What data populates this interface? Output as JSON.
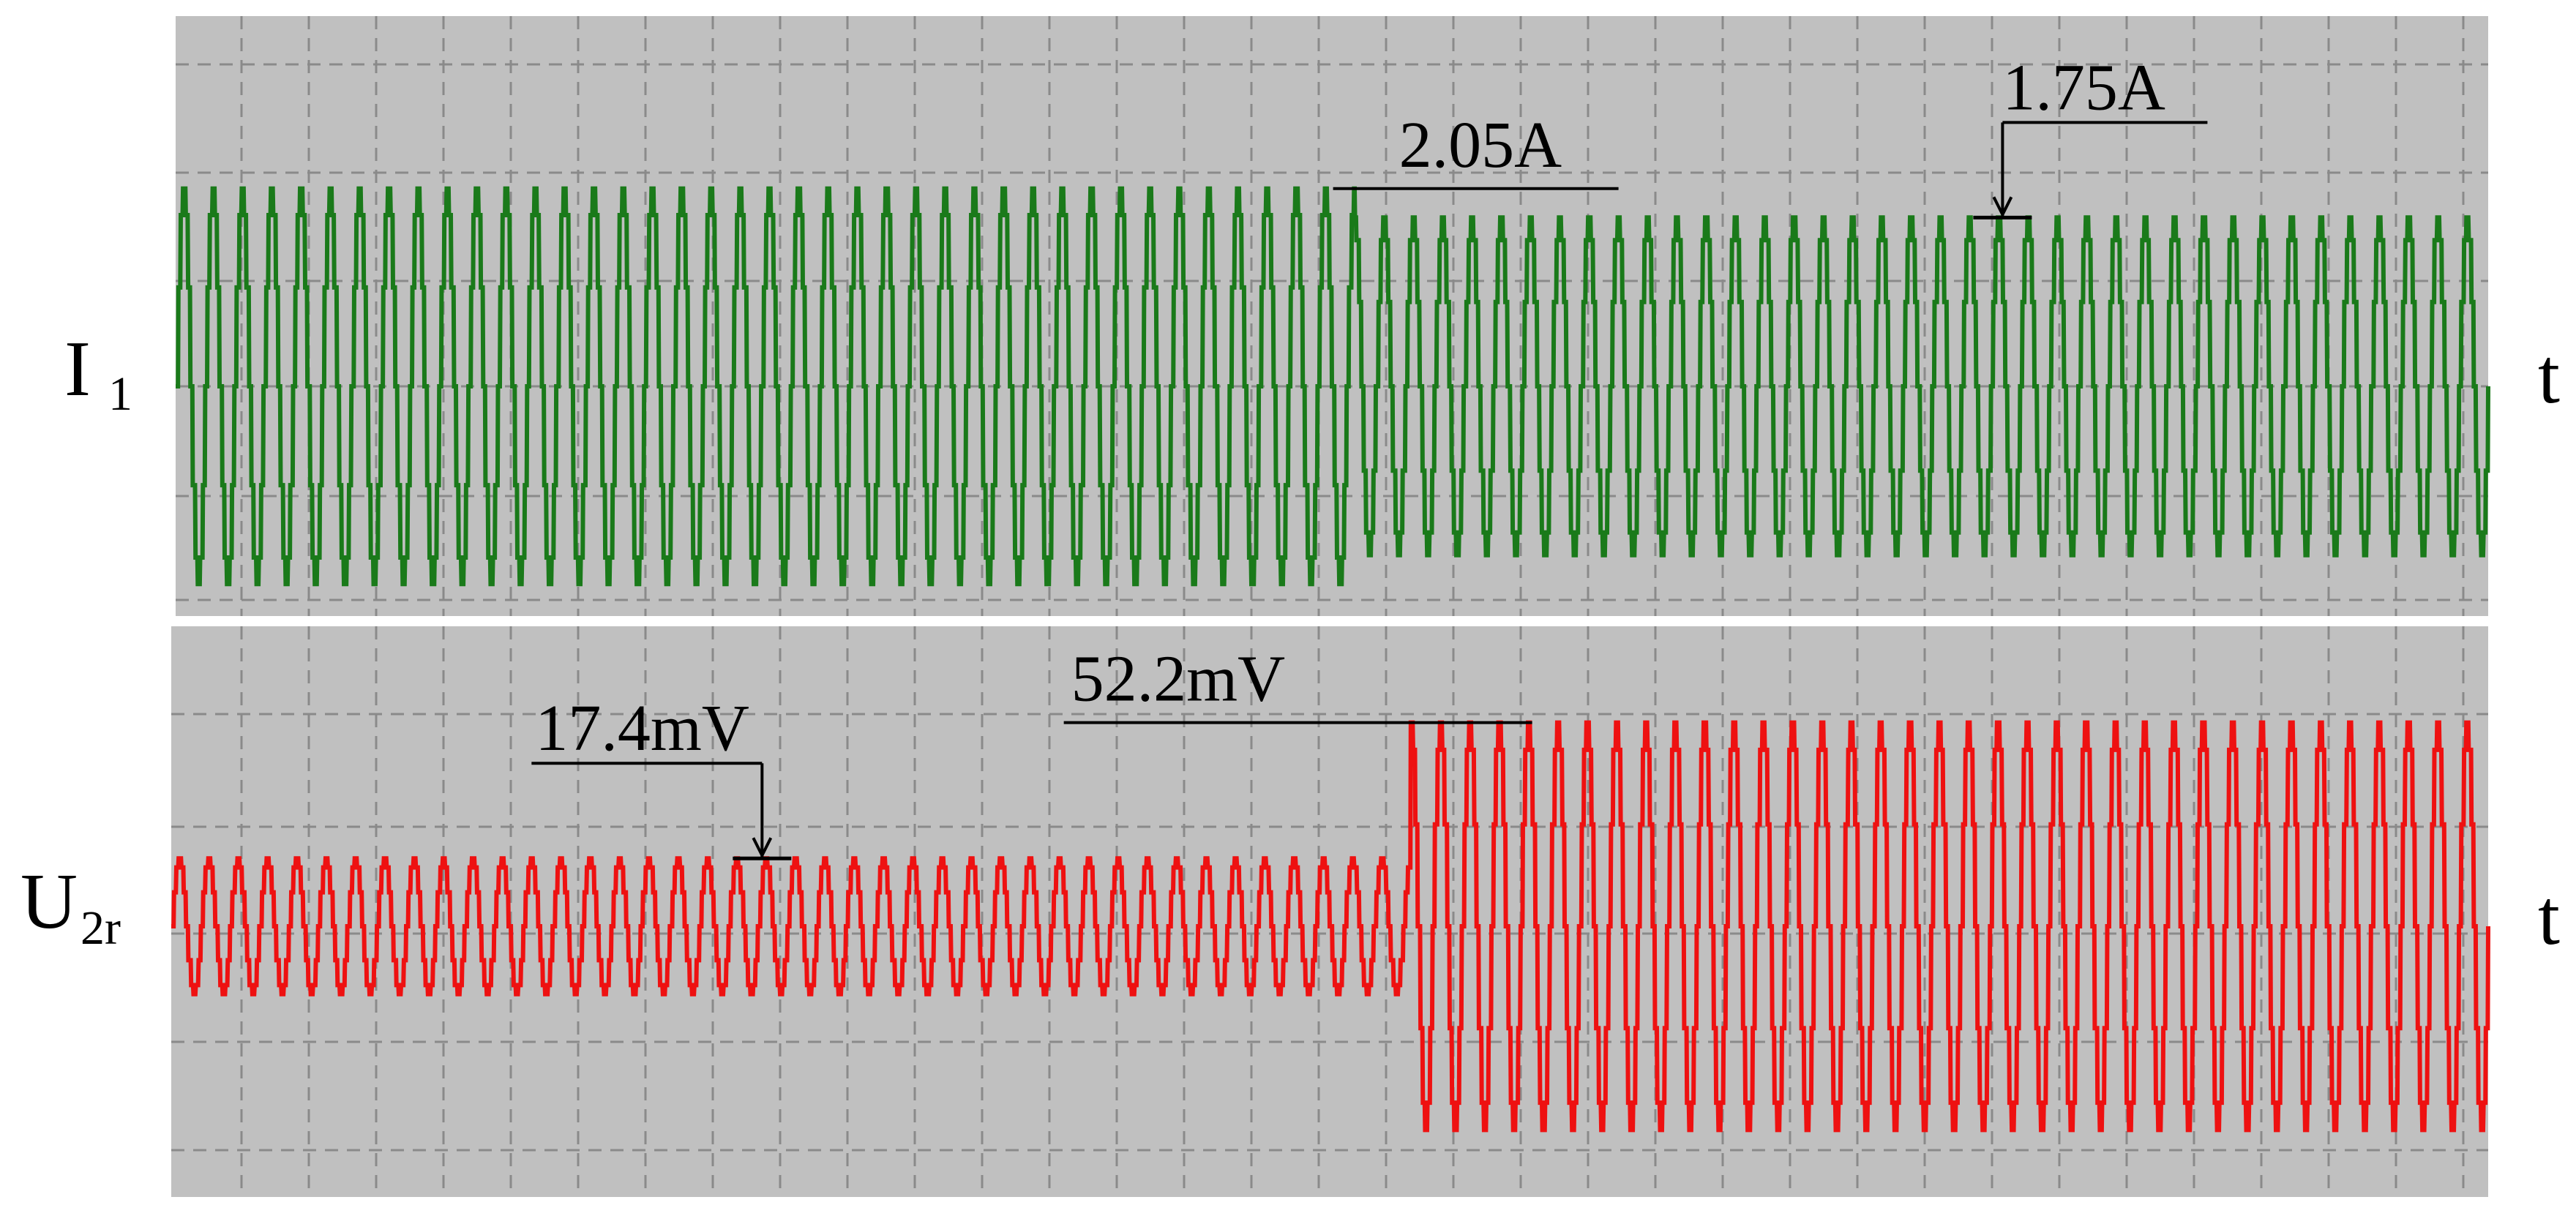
{
  "chart_data": [
    {
      "type": "line",
      "title": "",
      "ylabel": {
        "main": "I",
        "sub": "1"
      },
      "xlabel": "t",
      "ylim": [
        -2.2,
        2.2
      ],
      "color": "#1a7a1a",
      "series": [
        {
          "name": "I1",
          "segments": [
            {
              "t_start": 0.0,
              "t_end": 0.51,
              "amplitude": 2.05
            },
            {
              "t_start": 0.51,
              "t_end": 1.0,
              "amplitude": 1.75
            }
          ],
          "cycles": 79
        }
      ],
      "annotations": [
        {
          "label": "2.05A",
          "value": 2.05,
          "t": 0.51
        },
        {
          "label": "1.75A",
          "value": 1.75,
          "t": 0.79
        }
      ]
    },
    {
      "type": "line",
      "title": "",
      "ylabel": {
        "main": "U",
        "sub": "2r"
      },
      "xlabel": "t",
      "ylim": [
        -60,
        60
      ],
      "color": "#ee1111",
      "series": [
        {
          "name": "U2r",
          "segments": [
            {
              "t_start": 0.0,
              "t_end": 0.535,
              "amplitude": 17.4
            },
            {
              "t_start": 0.535,
              "t_end": 1.0,
              "amplitude": 52.2
            }
          ],
          "cycles": 79
        }
      ],
      "annotations": [
        {
          "label": "17.4mV",
          "value": 17.4,
          "t": 0.255
        },
        {
          "label": "52.2mV",
          "value": 52.2,
          "t": 0.54
        }
      ]
    }
  ]
}
